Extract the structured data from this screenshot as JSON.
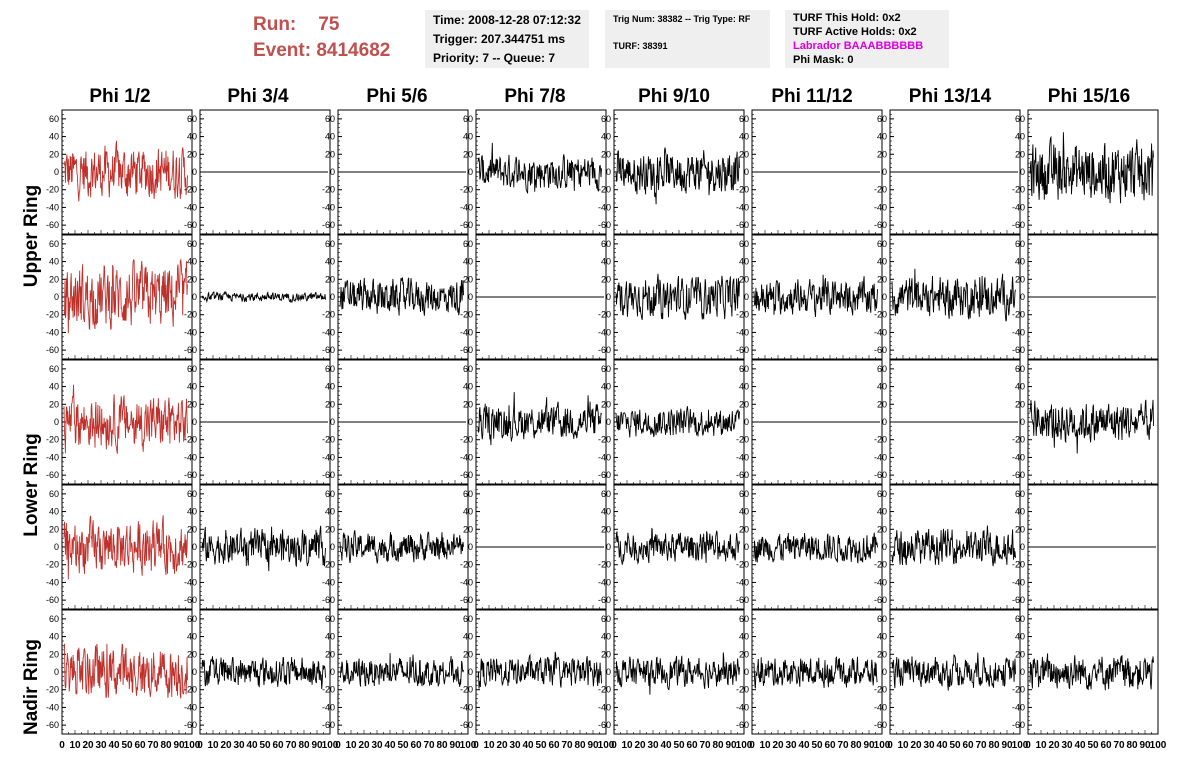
{
  "run_info": {
    "run_label": "Run:",
    "run_value": "75",
    "event_label": "Event:",
    "event_value": "8414682"
  },
  "info_box_1": [
    "Time: 2008-12-28 07:12:32",
    "Trigger: 207.344751 ms",
    "Priority: 7 -- Queue: 7"
  ],
  "info_box_2": [
    "Trig Num: 38382 -- Trig Type: RF",
    "TURF: 38391"
  ],
  "info_box_3": [
    "TURF This Hold: 0x2",
    "TURF Active Holds: 0x2",
    "Labrador BAAABBBBBB",
    "Phi Mask: 0"
  ],
  "columns": [
    "Phi 1/2",
    "Phi 3/4",
    "Phi 5/6",
    "Phi 7/8",
    "Phi 9/10",
    "Phi 11/12",
    "Phi 13/14",
    "Phi 15/16"
  ],
  "rows": [
    "Upper Ring",
    "Lower Ring",
    "Nadir Ring"
  ],
  "colors": {
    "trace_default": "#000000",
    "trace_highlight": "#c0302b",
    "run_text": "#c0504d",
    "labrador_text": "#e000e0",
    "box_bg": "#efefef"
  },
  "chart_data": {
    "type": "line",
    "grid": false,
    "layout": "5x8 panel grid of waveforms",
    "xlim": [
      0,
      100
    ],
    "ylim": [
      -70,
      70
    ],
    "x_ticks": [
      "0",
      "10",
      "20",
      "30",
      "40",
      "50",
      "60",
      "70",
      "80",
      "90",
      "100"
    ],
    "y_ticks": [
      "60",
      "40",
      "20",
      "0",
      "-20",
      "-40",
      "-60"
    ],
    "panel_amplitudes": [
      [
        18,
        0,
        0,
        12,
        14,
        0,
        0,
        20
      ],
      [
        22,
        3,
        12,
        0,
        14,
        12,
        14,
        0
      ],
      [
        18,
        0,
        0,
        12,
        10,
        0,
        0,
        14
      ],
      [
        18,
        12,
        10,
        0,
        10,
        10,
        12,
        0
      ],
      [
        18,
        10,
        10,
        10,
        10,
        10,
        10,
        12
      ]
    ],
    "highlight_column": 0,
    "trace_samples": 260
  }
}
